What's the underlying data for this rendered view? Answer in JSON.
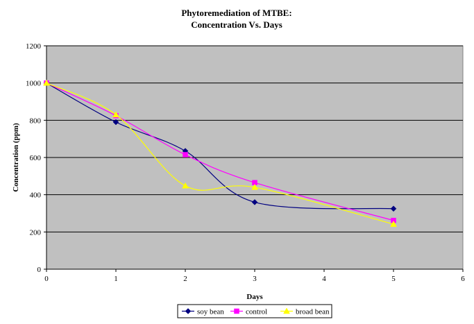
{
  "chart_data": {
    "type": "line",
    "title": [
      "Phytoremediation of MTBE:",
      "Concentration Vs. Days"
    ],
    "xlabel": "Days",
    "ylabel": "Concentration (ppm)",
    "xlim": [
      0,
      6
    ],
    "ylim": [
      0,
      1200
    ],
    "x_ticks": [
      0,
      1,
      2,
      3,
      4,
      5,
      6
    ],
    "y_ticks": [
      0,
      200,
      400,
      600,
      800,
      1000,
      1200
    ],
    "grid": "horizontal",
    "plot_background": "#c0c0c0",
    "smoothed": true,
    "legend_position": "bottom",
    "series": [
      {
        "name": "soy bean",
        "color": "#000080",
        "marker": "diamond",
        "x": [
          0,
          1,
          2,
          3,
          5
        ],
        "y": [
          1000,
          790,
          635,
          360,
          325
        ]
      },
      {
        "name": "control",
        "color": "#ff00ff",
        "marker": "square",
        "x": [
          0,
          1,
          2,
          3,
          5
        ],
        "y": [
          1000,
          825,
          615,
          465,
          262
        ]
      },
      {
        "name": "broad bean",
        "color": "#ffff00",
        "marker": "triangle",
        "x": [
          0,
          1,
          2,
          3,
          5
        ],
        "y": [
          1000,
          830,
          448,
          440,
          242
        ]
      }
    ]
  }
}
